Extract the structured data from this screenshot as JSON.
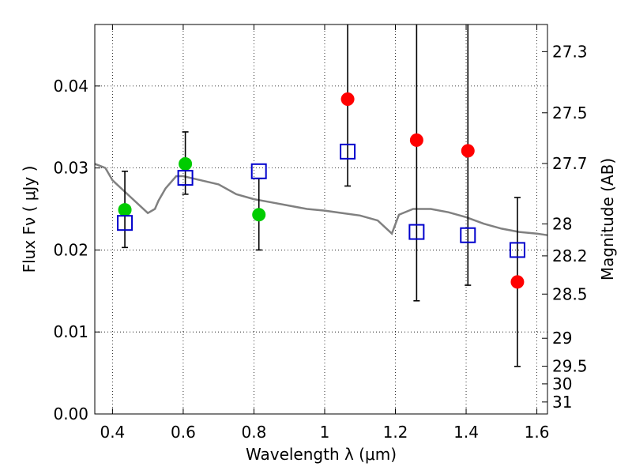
{
  "chart_data": {
    "type": "scatter",
    "title": "",
    "xlabel": "Wavelength  λ (μm)",
    "ylabel": "Flux  Fν  ( μJy )",
    "y2label": "Magnitude (AB)",
    "xlim": [
      0.35,
      1.63
    ],
    "ylim": [
      0.0,
      0.0475
    ],
    "x_ticks": [
      0.4,
      0.6,
      0.8,
      1.0,
      1.2,
      1.4,
      1.6
    ],
    "x_tick_labels": [
      "0.4",
      "0.6",
      "0.8",
      "1",
      "1.2",
      "1.4",
      "1.6"
    ],
    "y_ticks": [
      0.0,
      0.01,
      0.02,
      0.03,
      0.04
    ],
    "y_tick_labels": [
      "0.00",
      "0.01",
      "0.02",
      "0.03",
      "0.04"
    ],
    "y2_ticks": [
      {
        "label": "27.3",
        "flux": 0.04419
      },
      {
        "label": "27.5",
        "flux": 0.03673
      },
      {
        "label": "27.7",
        "flux": 0.03055
      },
      {
        "label": "28",
        "flux": 0.02318
      },
      {
        "label": "28.2",
        "flux": 0.01928
      },
      {
        "label": "28.5",
        "flux": 0.01462
      },
      {
        "label": "29",
        "flux": 0.00923
      },
      {
        "label": "29.5",
        "flux": 0.00582
      },
      {
        "label": "30",
        "flux": 0.00367
      },
      {
        "label": "31",
        "flux": 0.00146
      }
    ],
    "grid": true,
    "colors": {
      "model": "#808080",
      "green": "#00cc00",
      "red": "#ff0000",
      "square": "#0000cc",
      "errorbar": "#000000"
    },
    "series": [
      {
        "marker": "circle",
        "color": "#00cc00",
        "points": [
          {
            "x": 0.435,
            "y": 0.0249,
            "yerr_low": 0.0203,
            "yerr_high": 0.0296
          },
          {
            "x": 0.606,
            "y": 0.0305,
            "yerr_low": 0.0268,
            "yerr_high": 0.0344
          },
          {
            "x": 0.814,
            "y": 0.0243,
            "yerr_low": 0.02,
            "yerr_high": 0.0287
          }
        ]
      },
      {
        "marker": "circle",
        "color": "#ff0000",
        "points": [
          {
            "x": 1.065,
            "y": 0.0384,
            "yerr_low": 0.0278,
            "yerr_high": 0.0475
          },
          {
            "x": 1.26,
            "y": 0.0334,
            "yerr_low": 0.0138,
            "yerr_high": 0.0475
          },
          {
            "x": 1.405,
            "y": 0.0321,
            "yerr_low": 0.0157,
            "yerr_high": 0.0475
          },
          {
            "x": 1.545,
            "y": 0.0161,
            "yerr_low": 0.0058,
            "yerr_high": 0.0264
          }
        ]
      },
      {
        "marker": "square",
        "color": "#0000cc",
        "points": [
          {
            "x": 0.435,
            "y": 0.0233
          },
          {
            "x": 0.606,
            "y": 0.0288
          },
          {
            "x": 0.814,
            "y": 0.0296
          },
          {
            "x": 1.065,
            "y": 0.032
          },
          {
            "x": 1.26,
            "y": 0.0222
          },
          {
            "x": 1.405,
            "y": 0.0218
          },
          {
            "x": 1.545,
            "y": 0.02
          }
        ]
      },
      {
        "type": "line",
        "color": "#808080",
        "x": [
          0.35,
          0.38,
          0.4,
          0.45,
          0.5,
          0.52,
          0.53,
          0.55,
          0.58,
          0.6,
          0.65,
          0.7,
          0.75,
          0.8,
          0.85,
          0.9,
          0.95,
          1.0,
          1.05,
          1.1,
          1.15,
          1.19,
          1.21,
          1.25,
          1.3,
          1.35,
          1.4,
          1.45,
          1.5,
          1.55,
          1.6,
          1.63
        ],
        "y": [
          0.0305,
          0.03,
          0.0285,
          0.0265,
          0.0245,
          0.025,
          0.026,
          0.0275,
          0.029,
          0.029,
          0.0285,
          0.028,
          0.0268,
          0.0262,
          0.0258,
          0.0254,
          0.025,
          0.0248,
          0.0245,
          0.0242,
          0.0236,
          0.022,
          0.0243,
          0.025,
          0.025,
          0.0246,
          0.024,
          0.0232,
          0.0226,
          0.0222,
          0.022,
          0.0218
        ]
      }
    ]
  }
}
